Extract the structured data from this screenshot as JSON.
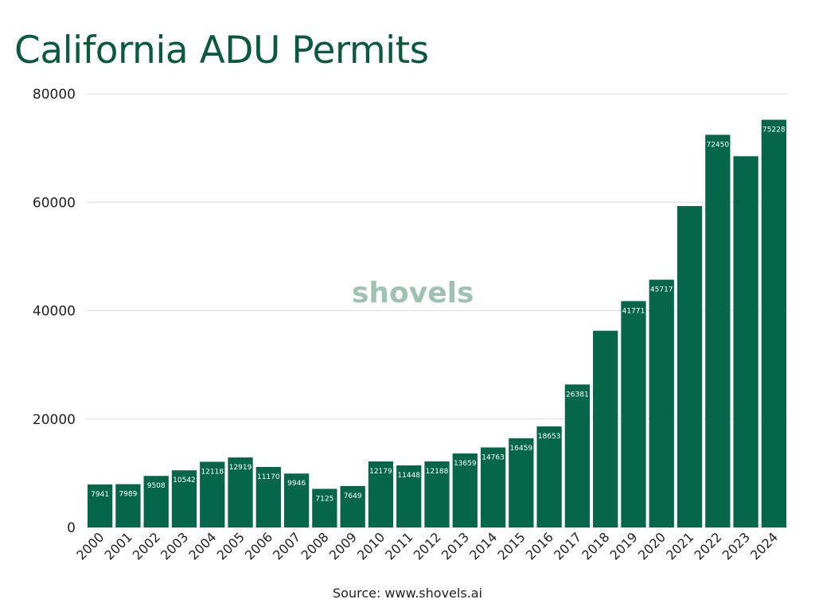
{
  "colors": {
    "bar": "#05664a",
    "title": "#0b5a3e",
    "grid": "#dcdcdc",
    "watermark": "#9fc2b2",
    "watermark_accent": "#d9c58a"
  },
  "watermark_text": "shovels",
  "source": "Source: www.shovels.ai",
  "chart_data": {
    "type": "bar",
    "title": "California ADU Permits",
    "xlabel": "",
    "ylabel": "",
    "ylim": [
      0,
      80000
    ],
    "yticks": [
      "0",
      "20000",
      "40000",
      "60000",
      "80000"
    ],
    "grid": true,
    "categories": [
      "2000",
      "2001",
      "2002",
      "2003",
      "2004",
      "2005",
      "2006",
      "2007",
      "2008",
      "2009",
      "2010",
      "2011",
      "2012",
      "2013",
      "2014",
      "2015",
      "2016",
      "2017",
      "2018",
      "2019",
      "2020",
      "2021",
      "2022",
      "2023",
      "2024"
    ],
    "values": [
      7941,
      7989,
      9508,
      10542,
      12118,
      12919,
      11170,
      9946,
      7125,
      7649,
      12179,
      11448,
      12188,
      13659,
      14763,
      16459,
      18653,
      26381,
      36300,
      41771,
      45717,
      59300,
      72450,
      68500,
      75228
    ],
    "data_labels": [
      "7941",
      "7989",
      "9508",
      "10542",
      "12118",
      "12919",
      "11170",
      "9946",
      "7125",
      "7649",
      "12179",
      "11448",
      "12188",
      "13659",
      "14763",
      "16459",
      "18653",
      "26381",
      "",
      "41771",
      "45717",
      "",
      "72450",
      "",
      "75228"
    ]
  }
}
